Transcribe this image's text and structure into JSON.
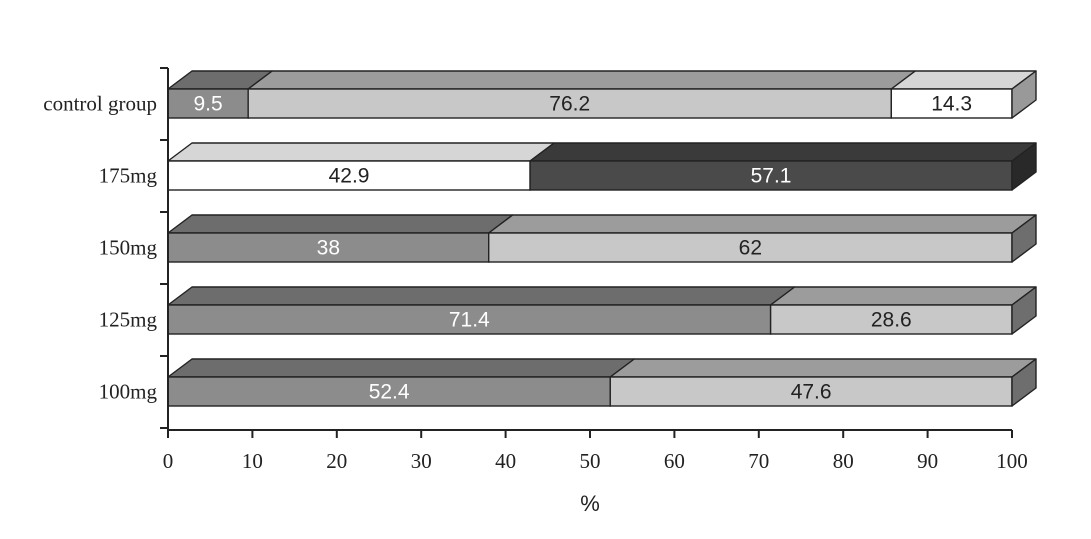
{
  "chart_data": {
    "type": "bar",
    "orientation": "horizontal",
    "stacked": true,
    "style": "3d",
    "categories": [
      "control group",
      "175mg",
      "150mg",
      "125mg",
      "100mg"
    ],
    "segments": [
      [
        {
          "value": 9.5,
          "label": "9.5",
          "color": "#8c8c8c"
        },
        {
          "value": 76.2,
          "label": "76.2",
          "color": "#c8c8c8"
        },
        {
          "value": 14.3,
          "label": "14.3",
          "color": "#ffffff"
        }
      ],
      [
        {
          "value": 42.9,
          "label": "42.9",
          "color": "#ffffff"
        },
        {
          "value": 57.1,
          "label": "57.1",
          "color": "#4a4a4a"
        }
      ],
      [
        {
          "value": 38,
          "label": "38",
          "color": "#8c8c8c"
        },
        {
          "value": 62,
          "label": "62",
          "color": "#c8c8c8"
        }
      ],
      [
        {
          "value": 71.4,
          "label": "71.4",
          "color": "#8c8c8c"
        },
        {
          "value": 28.6,
          "label": "28.6",
          "color": "#c8c8c8"
        }
      ],
      [
        {
          "value": 52.4,
          "label": "52.4",
          "color": "#8c8c8c"
        },
        {
          "value": 47.6,
          "label": "47.6",
          "color": "#c8c8c8"
        }
      ]
    ],
    "xlim": [
      0,
      100
    ],
    "xticks": [
      "0",
      "10",
      "20",
      "30",
      "40",
      "50",
      "60",
      "70",
      "80",
      "90",
      "100"
    ],
    "xlabel": "%",
    "ylabel": "",
    "title": "",
    "grid": false,
    "legend": "none"
  }
}
